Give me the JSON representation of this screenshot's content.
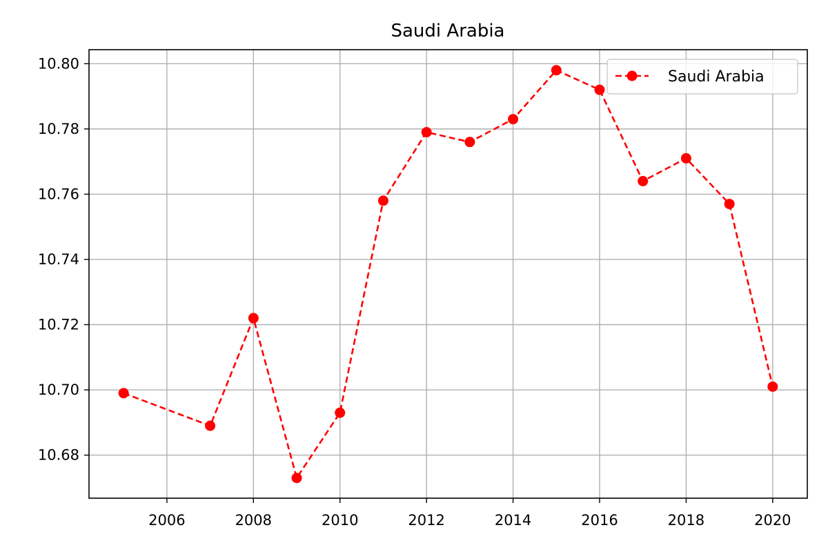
{
  "chart_data": {
    "type": "line",
    "title": "Saudi Arabia",
    "xlabel": "",
    "ylabel": "",
    "x": [
      2005,
      2007,
      2008,
      2009,
      2010,
      2011,
      2012,
      2013,
      2014,
      2015,
      2016,
      2017,
      2018,
      2019,
      2020
    ],
    "series": [
      {
        "name": "Saudi Arabia",
        "values": [
          10.699,
          10.689,
          10.722,
          10.673,
          10.693,
          10.758,
          10.779,
          10.776,
          10.783,
          10.798,
          10.792,
          10.764,
          10.771,
          10.757,
          10.701
        ],
        "color": "#ff0000",
        "line_style": "dashed",
        "marker": "circle"
      }
    ],
    "xlim": [
      2004.2,
      2020.8
    ],
    "ylim": [
      10.6668,
      10.8043
    ],
    "x_ticks": [
      2006,
      2008,
      2010,
      2012,
      2014,
      2016,
      2018,
      2020
    ],
    "x_tick_labels": [
      "2006",
      "2008",
      "2010",
      "2012",
      "2014",
      "2016",
      "2018",
      "2020"
    ],
    "y_ticks": [
      10.68,
      10.7,
      10.72,
      10.74,
      10.76,
      10.78,
      10.8
    ],
    "y_tick_labels": [
      "10.68",
      "10.70",
      "10.72",
      "10.74",
      "10.76",
      "10.78",
      "10.80"
    ],
    "grid": true,
    "legend_position": "top-right"
  }
}
